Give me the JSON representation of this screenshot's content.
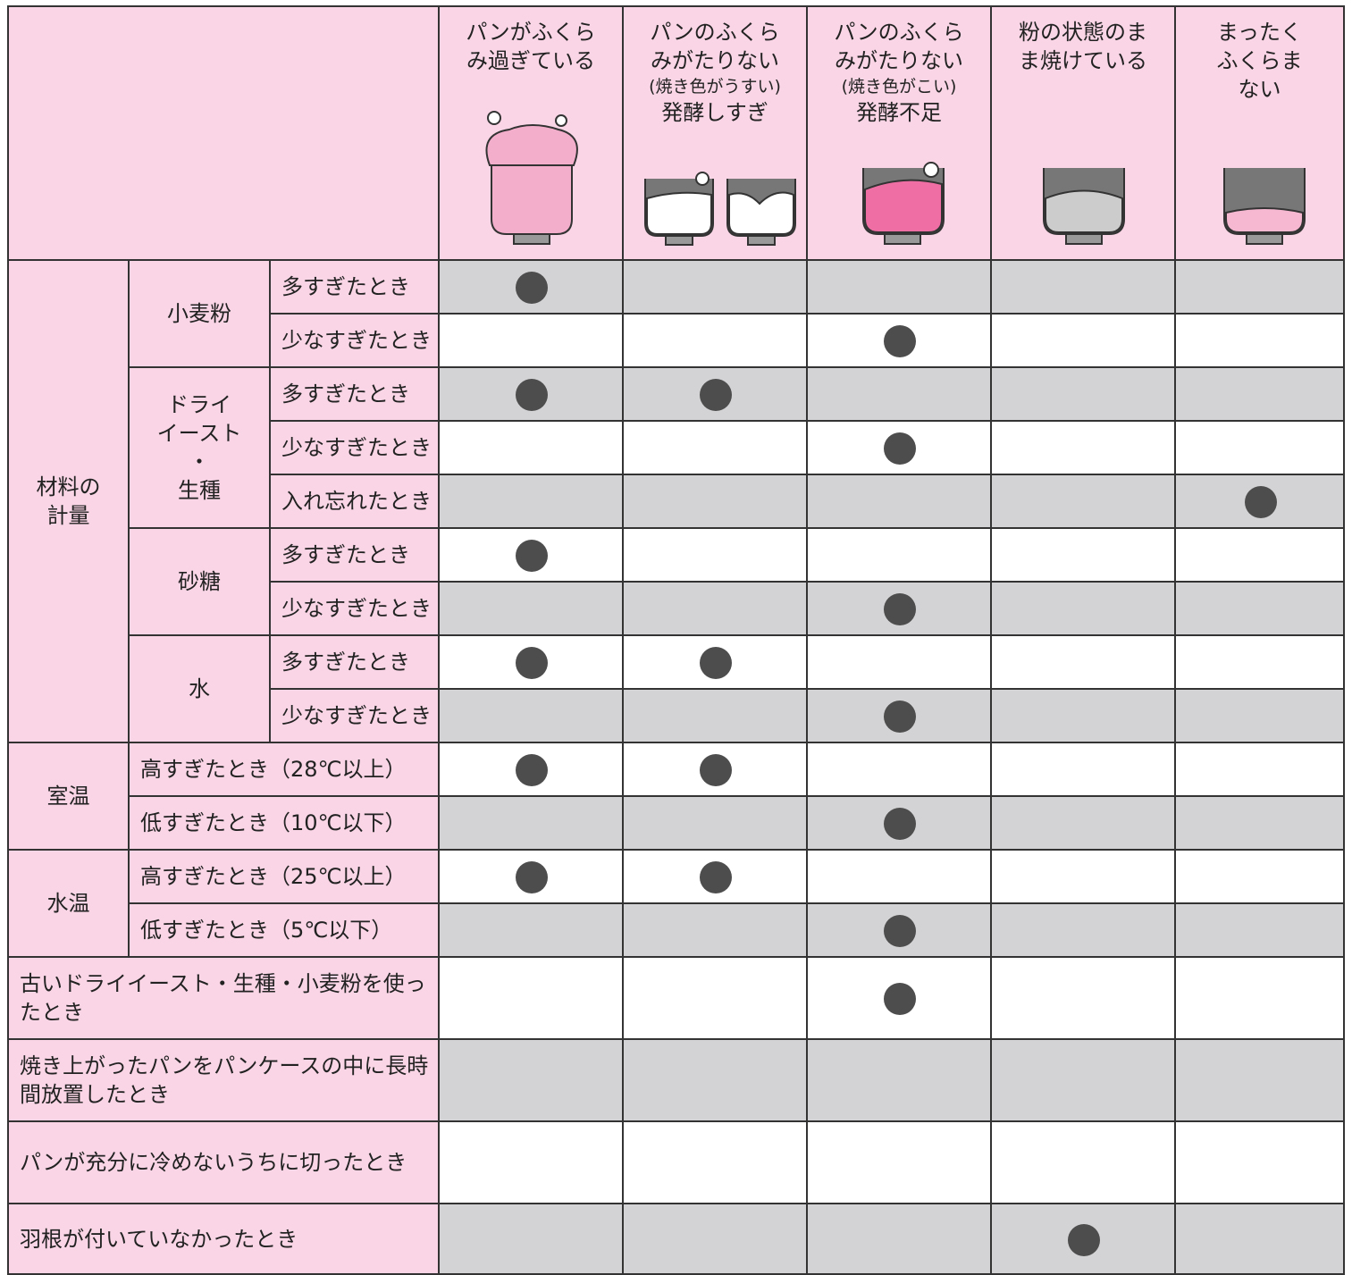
{
  "columns": [
    {
      "title": "パンがふくら\nみ過ぎている"
    },
    {
      "title": "パンのふくら\nみがたりない",
      "note": "(焼き色がうすい)",
      "sub": "発酵しすぎ"
    },
    {
      "title": "パンのふくら\nみがたりない",
      "note": "(焼き色がこい)",
      "sub": "発酵不足"
    },
    {
      "title": "粉の状態のま\nま焼けている"
    },
    {
      "title": "まったく\nふくらま\nない"
    }
  ],
  "sections": [
    {
      "label": "材料の\n計量",
      "subgroups": [
        {
          "label": "小麦粉",
          "rows": [
            {
              "label": "多すぎたとき",
              "marks": [
                true,
                false,
                false,
                false,
                false
              ]
            },
            {
              "label": "少なすぎたとき",
              "marks": [
                false,
                false,
                true,
                false,
                false
              ]
            }
          ]
        },
        {
          "label": "ドライ\nイースト\n・\n生種",
          "rows": [
            {
              "label": "多すぎたとき",
              "marks": [
                true,
                true,
                false,
                false,
                false
              ]
            },
            {
              "label": "少なすぎたとき",
              "marks": [
                false,
                false,
                true,
                false,
                false
              ]
            },
            {
              "label": "入れ忘れたとき",
              "marks": [
                false,
                false,
                false,
                false,
                true
              ]
            }
          ]
        },
        {
          "label": "砂糖",
          "rows": [
            {
              "label": "多すぎたとき",
              "marks": [
                true,
                false,
                false,
                false,
                false
              ]
            },
            {
              "label": "少なすぎたとき",
              "marks": [
                false,
                false,
                true,
                false,
                false
              ]
            }
          ]
        },
        {
          "label": "水",
          "rows": [
            {
              "label": "多すぎたとき",
              "marks": [
                true,
                true,
                false,
                false,
                false
              ]
            },
            {
              "label": "少なすぎたとき",
              "marks": [
                false,
                false,
                true,
                false,
                false
              ]
            }
          ]
        }
      ]
    },
    {
      "label": "室温",
      "rows": [
        {
          "label": "高すぎたとき（28℃以上）",
          "marks": [
            true,
            true,
            false,
            false,
            false
          ]
        },
        {
          "label": "低すぎたとき（10℃以下）",
          "marks": [
            false,
            false,
            true,
            false,
            false
          ]
        }
      ]
    },
    {
      "label": "水温",
      "rows": [
        {
          "label": "高すぎたとき（25℃以上）",
          "marks": [
            true,
            true,
            false,
            false,
            false
          ]
        },
        {
          "label": "低すぎたとき（5℃以下）",
          "marks": [
            false,
            false,
            true,
            false,
            false
          ]
        }
      ]
    },
    {
      "label": "古いドライイースト・生種・小麦粉を使ったとき",
      "marks": [
        false,
        false,
        true,
        false,
        false
      ]
    },
    {
      "label": "焼き上がったパンをパンケースの中に長時間放置したとき",
      "marks": [
        false,
        false,
        false,
        false,
        false
      ]
    },
    {
      "label": "パンが充分に冷めないうちに切ったとき",
      "marks": [
        false,
        false,
        false,
        false,
        false
      ]
    },
    {
      "label": "羽根が付いていなかったとき",
      "marks": [
        false,
        false,
        false,
        true,
        false
      ]
    }
  ]
}
